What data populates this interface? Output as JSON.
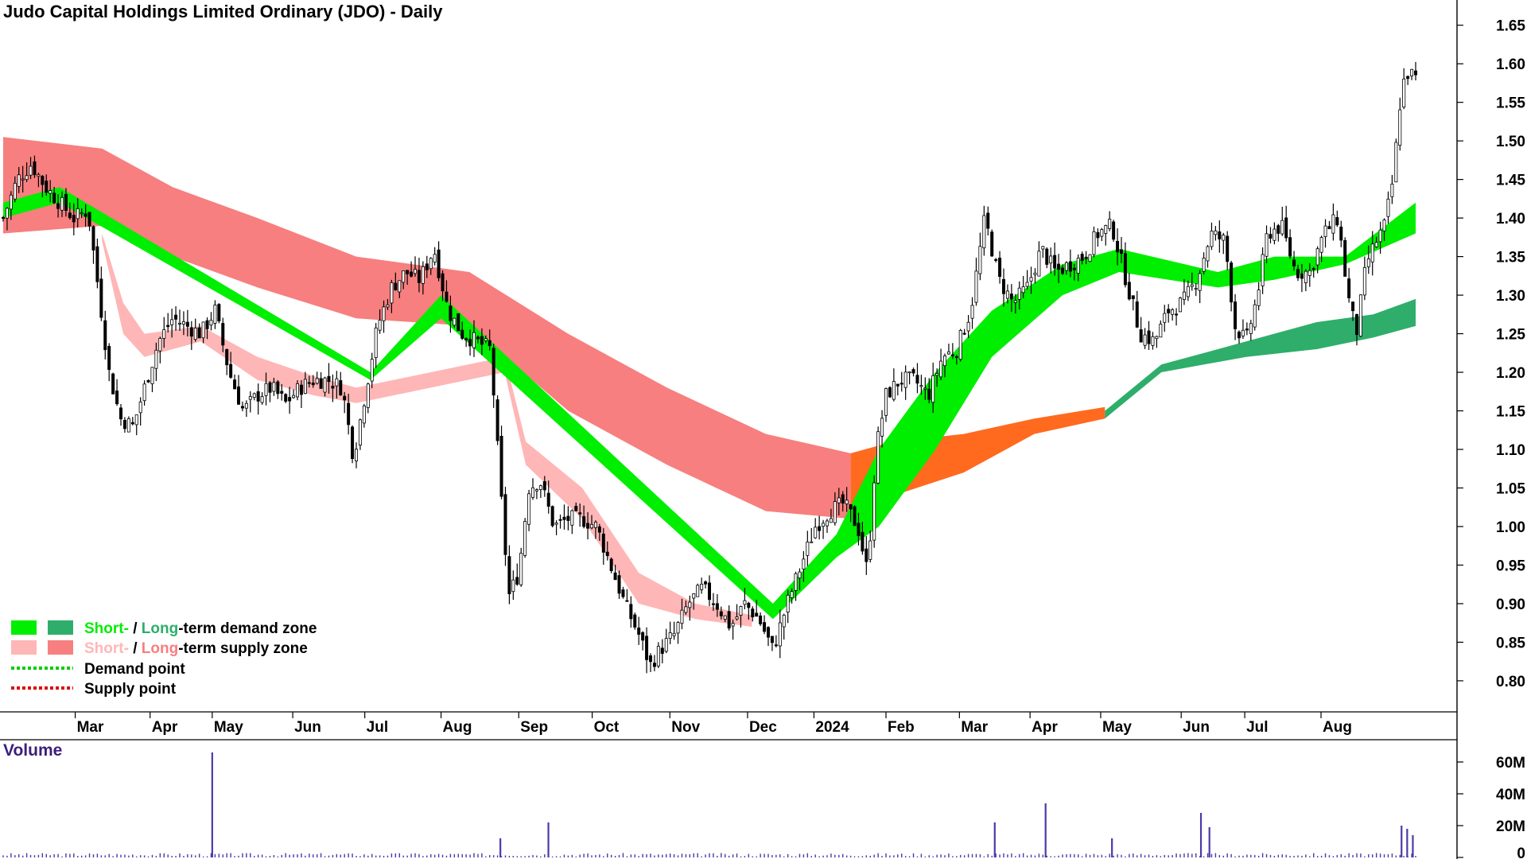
{
  "chart_data": {
    "type": "candlestick",
    "title": "Judo Capital Holdings Limited Ordinary (JDO) - Daily",
    "colors": {
      "short_demand": "#00ee00",
      "long_demand": "#2eae6a",
      "short_supply": "#ffb6b6",
      "long_supply": "#f77f7f",
      "transition": "#ff6a1f",
      "demand_point": "#00cc00",
      "supply_point": "#dd0000",
      "volume": "#4a3aa8"
    },
    "price_axis": {
      "range": [
        0.77,
        1.66
      ],
      "ticks": [
        "1.65",
        "1.60",
        "1.55",
        "1.50",
        "1.45",
        "1.40",
        "1.35",
        "1.30",
        "1.25",
        "1.20",
        "1.15",
        "1.10",
        "1.05",
        "1.00",
        "0.95",
        "0.90",
        "0.85",
        "0.80"
      ],
      "tick_values": [
        1.65,
        1.6,
        1.55,
        1.5,
        1.45,
        1.4,
        1.35,
        1.3,
        1.25,
        1.2,
        1.15,
        1.1,
        1.05,
        1.0,
        0.95,
        0.9,
        0.85,
        0.8
      ]
    },
    "x_axis": {
      "labels": [
        {
          "label": "Mar",
          "t": 0.051
        },
        {
          "label": "Apr",
          "t": 0.104
        },
        {
          "label": "May",
          "t": 0.148
        },
        {
          "label": "Jun",
          "t": 0.205
        },
        {
          "label": "Jul",
          "t": 0.256
        },
        {
          "label": "Aug",
          "t": 0.31
        },
        {
          "label": "Sep",
          "t": 0.365
        },
        {
          "label": "Oct",
          "t": 0.417
        },
        {
          "label": "Nov",
          "t": 0.472
        },
        {
          "label": "Dec",
          "t": 0.527
        },
        {
          "label": "2024",
          "t": 0.574
        },
        {
          "label": "Feb",
          "t": 0.625
        },
        {
          "label": "Mar",
          "t": 0.677
        },
        {
          "label": "Apr",
          "t": 0.727
        },
        {
          "label": "May",
          "t": 0.777
        },
        {
          "label": "Jun",
          "t": 0.834
        },
        {
          "label": "Jul",
          "t": 0.879
        },
        {
          "label": "Aug",
          "t": 0.933
        }
      ]
    },
    "price_series": [
      {
        "t": 0.0,
        "p": 1.4
      },
      {
        "t": 0.01,
        "p": 1.45
      },
      {
        "t": 0.02,
        "p": 1.47
      },
      {
        "t": 0.03,
        "p": 1.44
      },
      {
        "t": 0.04,
        "p": 1.42
      },
      {
        "t": 0.05,
        "p": 1.4
      },
      {
        "t": 0.06,
        "p": 1.41
      },
      {
        "t": 0.068,
        "p": 1.3
      },
      {
        "t": 0.075,
        "p": 1.2
      },
      {
        "t": 0.083,
        "p": 1.14
      },
      {
        "t": 0.092,
        "p": 1.13
      },
      {
        "t": 0.1,
        "p": 1.18
      },
      {
        "t": 0.11,
        "p": 1.24
      },
      {
        "t": 0.12,
        "p": 1.27
      },
      {
        "t": 0.13,
        "p": 1.26
      },
      {
        "t": 0.14,
        "p": 1.25
      },
      {
        "t": 0.15,
        "p": 1.28
      },
      {
        "t": 0.16,
        "p": 1.2
      },
      {
        "t": 0.17,
        "p": 1.15
      },
      {
        "t": 0.18,
        "p": 1.17
      },
      {
        "t": 0.19,
        "p": 1.18
      },
      {
        "t": 0.2,
        "p": 1.16
      },
      {
        "t": 0.21,
        "p": 1.18
      },
      {
        "t": 0.22,
        "p": 1.19
      },
      {
        "t": 0.23,
        "p": 1.19
      },
      {
        "t": 0.24,
        "p": 1.18
      },
      {
        "t": 0.248,
        "p": 1.09
      },
      {
        "t": 0.255,
        "p": 1.16
      },
      {
        "t": 0.265,
        "p": 1.26
      },
      {
        "t": 0.275,
        "p": 1.31
      },
      {
        "t": 0.285,
        "p": 1.33
      },
      {
        "t": 0.295,
        "p": 1.32
      },
      {
        "t": 0.305,
        "p": 1.36
      },
      {
        "t": 0.315,
        "p": 1.28
      },
      {
        "t": 0.325,
        "p": 1.25
      },
      {
        "t": 0.335,
        "p": 1.24
      },
      {
        "t": 0.345,
        "p": 1.23
      },
      {
        "t": 0.352,
        "p": 1.05
      },
      {
        "t": 0.358,
        "p": 0.91
      },
      {
        "t": 0.365,
        "p": 0.94
      },
      {
        "t": 0.372,
        "p": 1.05
      },
      {
        "t": 0.38,
        "p": 1.06
      },
      {
        "t": 0.39,
        "p": 1.0
      },
      {
        "t": 0.4,
        "p": 1.01
      },
      {
        "t": 0.41,
        "p": 1.01
      },
      {
        "t": 0.42,
        "p": 1.0
      },
      {
        "t": 0.43,
        "p": 0.95
      },
      {
        "t": 0.44,
        "p": 0.9
      },
      {
        "t": 0.45,
        "p": 0.86
      },
      {
        "t": 0.458,
        "p": 0.82
      },
      {
        "t": 0.465,
        "p": 0.84
      },
      {
        "t": 0.475,
        "p": 0.86
      },
      {
        "t": 0.485,
        "p": 0.9
      },
      {
        "t": 0.495,
        "p": 0.92
      },
      {
        "t": 0.505,
        "p": 0.9
      },
      {
        "t": 0.515,
        "p": 0.87
      },
      {
        "t": 0.525,
        "p": 0.9
      },
      {
        "t": 0.535,
        "p": 0.88
      },
      {
        "t": 0.545,
        "p": 0.84
      },
      {
        "t": 0.555,
        "p": 0.9
      },
      {
        "t": 0.565,
        "p": 0.95
      },
      {
        "t": 0.575,
        "p": 1.0
      },
      {
        "t": 0.585,
        "p": 1.02
      },
      {
        "t": 0.595,
        "p": 1.03
      },
      {
        "t": 0.605,
        "p": 1.0
      },
      {
        "t": 0.612,
        "p": 0.94
      },
      {
        "t": 0.618,
        "p": 1.1
      },
      {
        "t": 0.625,
        "p": 1.17
      },
      {
        "t": 0.635,
        "p": 1.19
      },
      {
        "t": 0.645,
        "p": 1.19
      },
      {
        "t": 0.655,
        "p": 1.17
      },
      {
        "t": 0.665,
        "p": 1.22
      },
      {
        "t": 0.675,
        "p": 1.23
      },
      {
        "t": 0.685,
        "p": 1.28
      },
      {
        "t": 0.695,
        "p": 1.4
      },
      {
        "t": 0.705,
        "p": 1.32
      },
      {
        "t": 0.715,
        "p": 1.29
      },
      {
        "t": 0.725,
        "p": 1.31
      },
      {
        "t": 0.735,
        "p": 1.36
      },
      {
        "t": 0.745,
        "p": 1.33
      },
      {
        "t": 0.755,
        "p": 1.34
      },
      {
        "t": 0.765,
        "p": 1.35
      },
      {
        "t": 0.775,
        "p": 1.38
      },
      {
        "t": 0.785,
        "p": 1.39
      },
      {
        "t": 0.795,
        "p": 1.32
      },
      {
        "t": 0.805,
        "p": 1.25
      },
      {
        "t": 0.815,
        "p": 1.24
      },
      {
        "t": 0.825,
        "p": 1.28
      },
      {
        "t": 0.835,
        "p": 1.29
      },
      {
        "t": 0.845,
        "p": 1.32
      },
      {
        "t": 0.855,
        "p": 1.38
      },
      {
        "t": 0.865,
        "p": 1.37
      },
      {
        "t": 0.872,
        "p": 1.26
      },
      {
        "t": 0.88,
        "p": 1.24
      },
      {
        "t": 0.888,
        "p": 1.3
      },
      {
        "t": 0.895,
        "p": 1.38
      },
      {
        "t": 0.905,
        "p": 1.39
      },
      {
        "t": 0.915,
        "p": 1.33
      },
      {
        "t": 0.925,
        "p": 1.33
      },
      {
        "t": 0.935,
        "p": 1.38
      },
      {
        "t": 0.945,
        "p": 1.4
      },
      {
        "t": 0.952,
        "p": 1.3
      },
      {
        "t": 0.958,
        "p": 1.25
      },
      {
        "t": 0.965,
        "p": 1.34
      },
      {
        "t": 0.972,
        "p": 1.37
      },
      {
        "t": 0.978,
        "p": 1.39
      },
      {
        "t": 0.984,
        "p": 1.45
      },
      {
        "t": 0.99,
        "p": 1.57
      },
      {
        "t": 0.995,
        "p": 1.59
      },
      {
        "t": 1.0,
        "p": 1.58
      }
    ],
    "zones": {
      "long_supply": [
        {
          "t": 0.0,
          "top": 1.505,
          "bot": 1.38
        },
        {
          "t": 0.07,
          "top": 1.49,
          "bot": 1.39
        },
        {
          "t": 0.12,
          "top": 1.44,
          "bot": 1.35
        },
        {
          "t": 0.18,
          "top": 1.4,
          "bot": 1.31
        },
        {
          "t": 0.25,
          "top": 1.35,
          "bot": 1.27
        },
        {
          "t": 0.33,
          "top": 1.33,
          "bot": 1.26
        },
        {
          "t": 0.4,
          "top": 1.25,
          "bot": 1.15
        },
        {
          "t": 0.47,
          "top": 1.18,
          "bot": 1.08
        },
        {
          "t": 0.54,
          "top": 1.12,
          "bot": 1.02
        },
        {
          "t": 0.6,
          "top": 1.095,
          "bot": 1.01
        }
      ],
      "short_supply": [
        {
          "t": 0.07,
          "top": 1.38,
          "bot": 1.37
        },
        {
          "t": 0.085,
          "top": 1.29,
          "bot": 1.25
        },
        {
          "t": 0.1,
          "top": 1.25,
          "bot": 1.22
        },
        {
          "t": 0.14,
          "top": 1.26,
          "bot": 1.24
        },
        {
          "t": 0.18,
          "top": 1.22,
          "bot": 1.19
        },
        {
          "t": 0.22,
          "top": 1.195,
          "bot": 1.17
        },
        {
          "t": 0.25,
          "top": 1.18,
          "bot": 1.16
        },
        {
          "t": 0.355,
          "top": 1.22,
          "bot": 1.2
        },
        {
          "t": 0.37,
          "top": 1.11,
          "bot": 1.08
        },
        {
          "t": 0.41,
          "top": 1.05,
          "bot": 1.01
        },
        {
          "t": 0.45,
          "top": 0.94,
          "bot": 0.9
        },
        {
          "t": 0.49,
          "top": 0.9,
          "bot": 0.88
        },
        {
          "t": 0.53,
          "top": 0.885,
          "bot": 0.87
        }
      ],
      "short_demand": [
        {
          "t": 0.0,
          "top": 1.42,
          "bot": 1.4
        },
        {
          "t": 0.04,
          "top": 1.44,
          "bot": 1.42
        },
        {
          "t": 0.26,
          "top": 1.2,
          "bot": 1.19
        },
        {
          "t": 0.31,
          "top": 1.3,
          "bot": 1.27
        },
        {
          "t": 0.545,
          "top": 0.9,
          "bot": 0.88
        },
        {
          "t": 0.59,
          "top": 0.99,
          "bot": 0.96
        },
        {
          "t": 0.62,
          "top": 1.1,
          "bot": 1.0
        },
        {
          "t": 0.66,
          "top": 1.2,
          "bot": 1.1
        },
        {
          "t": 0.7,
          "top": 1.28,
          "bot": 1.22
        },
        {
          "t": 0.75,
          "top": 1.34,
          "bot": 1.3
        },
        {
          "t": 0.79,
          "top": 1.36,
          "bot": 1.33
        },
        {
          "t": 0.86,
          "top": 1.33,
          "bot": 1.31
        },
        {
          "t": 0.9,
          "top": 1.35,
          "bot": 1.32
        },
        {
          "t": 0.95,
          "top": 1.35,
          "bot": 1.34
        },
        {
          "t": 1.0,
          "top": 1.42,
          "bot": 1.38
        }
      ],
      "long_demand": [
        {
          "t": 0.78,
          "top": 1.15,
          "bot": 1.14
        },
        {
          "t": 0.82,
          "top": 1.21,
          "bot": 1.2
        },
        {
          "t": 0.88,
          "top": 1.24,
          "bot": 1.22
        },
        {
          "t": 0.93,
          "top": 1.265,
          "bot": 1.23
        },
        {
          "t": 0.97,
          "top": 1.275,
          "bot": 1.245
        },
        {
          "t": 1.0,
          "top": 1.295,
          "bot": 1.26
        }
      ],
      "transition": [
        {
          "t": 0.6,
          "top": 1.095,
          "bot": 1.0
        },
        {
          "t": 0.63,
          "top": 1.11,
          "bot": 1.04
        },
        {
          "t": 0.68,
          "top": 1.12,
          "bot": 1.07
        },
        {
          "t": 0.73,
          "top": 1.14,
          "bot": 1.12
        },
        {
          "t": 0.78,
          "top": 1.155,
          "bot": 1.14
        }
      ]
    },
    "volume": {
      "title": "Volume",
      "ticks": [
        "60M",
        "40M",
        "20M",
        "0"
      ],
      "tick_values": [
        60,
        40,
        20,
        0
      ],
      "max": 68,
      "spikes": [
        {
          "t": 0.148,
          "v": 66
        },
        {
          "t": 0.352,
          "v": 12
        },
        {
          "t": 0.386,
          "v": 22
        },
        {
          "t": 0.702,
          "v": 22
        },
        {
          "t": 0.738,
          "v": 34
        },
        {
          "t": 0.785,
          "v": 12
        },
        {
          "t": 0.848,
          "v": 28
        },
        {
          "t": 0.854,
          "v": 19
        },
        {
          "t": 0.99,
          "v": 20
        },
        {
          "t": 0.994,
          "v": 18
        },
        {
          "t": 0.998,
          "v": 14
        }
      ]
    },
    "legend": [
      {
        "swatches": [
          "short_demand",
          "long_demand"
        ],
        "short": "Short-",
        "sep": " / ",
        "long": "Long",
        "rest": "-term demand zone",
        "kind": "demand"
      },
      {
        "swatches": [
          "short_supply",
          "long_supply"
        ],
        "short": "Short-",
        "sep": " / ",
        "long": "Long",
        "rest": "-term supply zone",
        "kind": "supply"
      },
      {
        "line": "demand_point",
        "text": "Demand point"
      },
      {
        "line": "supply_point",
        "text": "Supply point"
      }
    ]
  }
}
